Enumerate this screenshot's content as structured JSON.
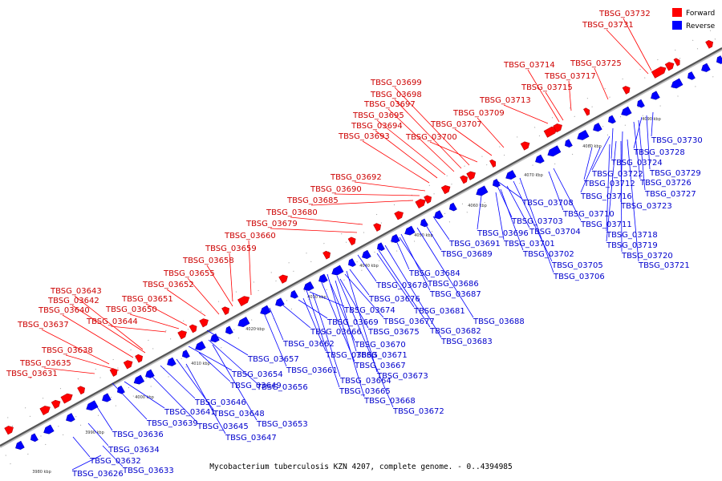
{
  "legend": [
    {
      "label": "Forward",
      "color": "#ff0000"
    },
    {
      "label": "Reverse",
      "color": "#0000ff"
    }
  ],
  "caption": "Mycobacterium tuberculosis KZN 4207, complete genome. - 0..4394985",
  "axis_ticks": [
    "3980 kbp",
    "3990 kbp",
    "4000 kbp",
    "4010 kbp",
    "4020 kbp",
    "4030 kbp",
    "4040 kbp",
    "4050 kbp",
    "4060 kbp",
    "4070 kbp",
    "4080 kbp",
    "4090 kbp"
  ],
  "forward_labels": [
    "TBSG_03631",
    "TBSG_03635",
    "TBSG_03638",
    "TBSG_03637",
    "TBSG_03640",
    "TBSG_03642",
    "TBSG_03643",
    "TBSG_03644",
    "TBSG_03650",
    "TBSG_03651",
    "TBSG_03652",
    "TBSG_03655",
    "TBSG_03658",
    "TBSG_03659",
    "TBSG_03660",
    "TBSG_03679",
    "TBSG_03680",
    "TBSG_03685",
    "TBSG_03690",
    "TBSG_03692",
    "TBSG_03693",
    "TBSG_03694",
    "TBSG_03695",
    "TBSG_03697",
    "TBSG_03698",
    "TBSG_03699",
    "TBSG_03700",
    "TBSG_03707",
    "TBSG_03709",
    "TBSG_03713",
    "TBSG_03714",
    "TBSG_03715",
    "TBSG_03717",
    "TBSG_03725",
    "TBSG_03731",
    "TBSG_03732"
  ],
  "reverse_labels": [
    "TBSG_03626",
    "TBSG_03632",
    "TBSG_03633",
    "TBSG_03634",
    "TBSG_03636",
    "TBSG_03639",
    "TBSG_03641",
    "TBSG_03645",
    "TBSG_03646",
    "TBSG_03647",
    "TBSG_03648",
    "TBSG_03649",
    "TBSG_03653",
    "TBSG_03654",
    "TBSG_03656",
    "TBSG_03657",
    "TBSG_03661",
    "TBSG_03662",
    "TBSG_03663",
    "TBSG_03664",
    "TBSG_03665",
    "TBSG_03666",
    "TBSG_03667",
    "TBSG_03668",
    "TBSG_03669",
    "TBSG_03670",
    "TBSG_03671",
    "TBSG_03672",
    "TBSG_03673",
    "TBSG_03674",
    "TBSG_03675",
    "TBSG_03676",
    "TBSG_03677",
    "TBSG_03678",
    "TBSG_03681",
    "TBSG_03682",
    "TBSG_03683",
    "TBSG_03684",
    "TBSG_03686",
    "TBSG_03687",
    "TBSG_03688",
    "TBSG_03689",
    "TBSG_03691",
    "TBSG_03696",
    "TBSG_03701",
    "TBSG_03702",
    "TBSG_03703",
    "TBSG_03704",
    "TBSG_03705",
    "TBSG_03706",
    "TBSG_03708",
    "TBSG_03710",
    "TBSG_03711",
    "TBSG_03712",
    "TBSG_03716",
    "TBSG_03718",
    "TBSG_03719",
    "TBSG_03720",
    "TBSG_03721",
    "TBSG_03722",
    "TBSG_03723",
    "TBSG_03724",
    "TBSG_03726",
    "TBSG_03727",
    "TBSG_03728",
    "TBSG_03729",
    "TBSG_03730"
  ]
}
